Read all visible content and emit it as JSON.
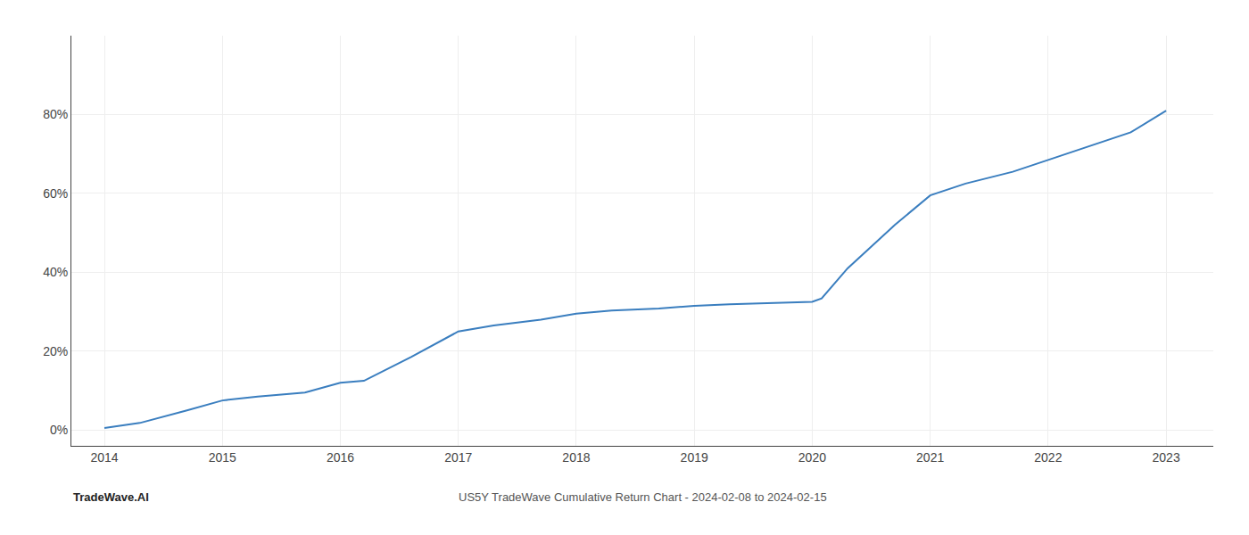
{
  "chart_data": {
    "type": "line",
    "annotations": [
      "TradeWave.AI",
      "US5Y TradeWave Cumulative Return Chart - 2024-02-08 to 2024-02-15"
    ],
    "x": [
      2014.0,
      2014.3,
      2014.7,
      2015.0,
      2015.3,
      2015.7,
      2016.0,
      2016.2,
      2016.6,
      2017.0,
      2017.3,
      2017.7,
      2018.0,
      2018.3,
      2018.7,
      2019.0,
      2019.3,
      2019.7,
      2020.0,
      2020.08,
      2020.3,
      2020.7,
      2021.0,
      2021.3,
      2021.7,
      2022.0,
      2022.3,
      2022.7,
      2023.0
    ],
    "values": [
      0.005,
      0.018,
      0.05,
      0.075,
      0.085,
      0.095,
      0.12,
      0.125,
      0.185,
      0.25,
      0.265,
      0.28,
      0.295,
      0.303,
      0.308,
      0.315,
      0.319,
      0.322,
      0.325,
      0.334,
      0.41,
      0.52,
      0.595,
      0.625,
      0.655,
      0.685,
      0.715,
      0.755,
      0.81
    ],
    "color": "#3a7ebf",
    "xlim": [
      2013.72,
      2023.4
    ],
    "ylim": [
      -0.04,
      1.0
    ],
    "xticks": [
      2014,
      2015,
      2016,
      2017,
      2018,
      2019,
      2020,
      2021,
      2022,
      2023
    ],
    "yticks": [
      {
        "value": 0.0,
        "label": "0%"
      },
      {
        "value": 0.2,
        "label": "20%"
      },
      {
        "value": 0.4,
        "label": "40%"
      },
      {
        "value": 0.6,
        "label": "60%"
      },
      {
        "value": 0.8,
        "label": "80%"
      }
    ],
    "grid": true
  }
}
